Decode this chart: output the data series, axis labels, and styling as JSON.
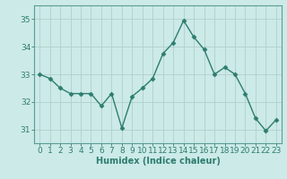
{
  "x": [
    0,
    1,
    2,
    3,
    4,
    5,
    6,
    7,
    8,
    9,
    10,
    11,
    12,
    13,
    14,
    15,
    16,
    17,
    18,
    19,
    20,
    21,
    22,
    23
  ],
  "y": [
    33.0,
    32.85,
    32.5,
    32.3,
    32.3,
    32.3,
    31.85,
    32.3,
    31.05,
    32.2,
    32.5,
    32.85,
    33.75,
    34.15,
    34.95,
    34.35,
    33.9,
    33.0,
    33.25,
    33.0,
    32.3,
    31.4,
    30.95,
    31.35
  ],
  "line_color": "#2d7d6e",
  "marker": "D",
  "markersize": 2.5,
  "linewidth": 1.0,
  "bg_color": "#cceae7",
  "grid_color_major": "#b0d0cc",
  "grid_color_minor": "#c4e2de",
  "xlabel": "Humidex (Indice chaleur)",
  "xlabel_fontsize": 7,
  "tick_fontsize": 6.5,
  "ylim": [
    30.5,
    35.5
  ],
  "yticks": [
    31,
    32,
    33,
    34,
    35
  ],
  "xticks": [
    0,
    1,
    2,
    3,
    4,
    5,
    6,
    7,
    8,
    9,
    10,
    11,
    12,
    13,
    14,
    15,
    16,
    17,
    18,
    19,
    20,
    21,
    22,
    23
  ],
  "spine_color": "#5a9e96",
  "tick_color": "#2d7d6e"
}
